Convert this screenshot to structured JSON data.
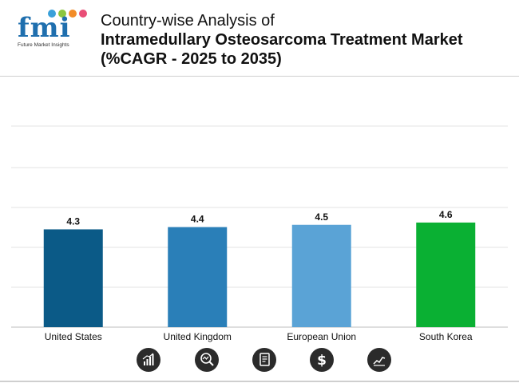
{
  "brand": {
    "logo_text": "fmi",
    "tagline": "Future Market Insights",
    "dot_colors": [
      "#3aa0d9",
      "#8cc63f",
      "#f28c28",
      "#e94e77"
    ]
  },
  "title": {
    "line1": "Country-wise Analysis of",
    "line2": "Intramedullary Osteosarcoma Treatment Market",
    "line3": "(%CAGR - 2025 to 2035)"
  },
  "chart_data": {
    "type": "bar",
    "title": "Country-wise Analysis of Intramedullary Osteosarcoma Treatment Market (%CAGR - 2025 to 2035)",
    "categories": [
      "United States",
      "United Kingdom",
      "European Union",
      "South Korea"
    ],
    "values": [
      4.3,
      4.4,
      4.5,
      4.6
    ],
    "value_labels": [
      "4.3",
      "4.4",
      "4.5",
      "4.6"
    ],
    "bar_colors": [
      "#0b5a87",
      "#2a7fb8",
      "#5aa3d6",
      "#0ab033"
    ],
    "xlabel": "",
    "ylabel": "",
    "ylim": [
      0,
      4.6
    ],
    "grid": true,
    "legend": "none"
  },
  "footer_icons": [
    "bar-growth-icon",
    "magnifier-chart-icon",
    "report-document-icon",
    "dollar-icon",
    "line-trend-icon"
  ]
}
